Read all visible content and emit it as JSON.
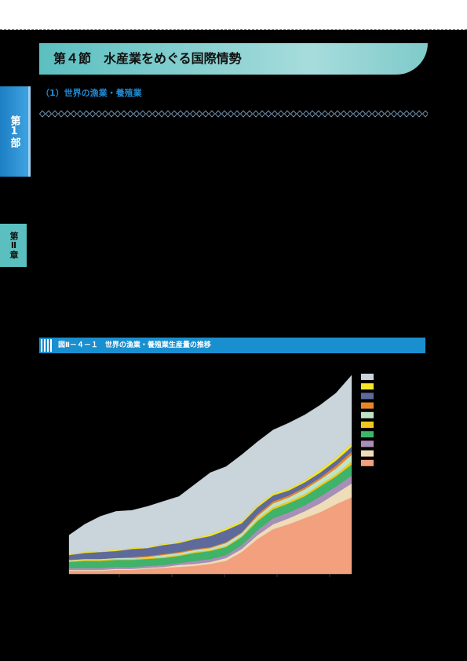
{
  "header": {
    "title": "第４節　水産業をめぐる国際情勢"
  },
  "section": {
    "heading": "（1）世界の漁業・養殖業"
  },
  "tabs": {
    "part": "第1部",
    "chapter": "第Ⅱ章"
  },
  "figure": {
    "title": "図Ⅱ－４－１　世界の漁業・養殖業生産量の推移"
  },
  "chart_data": {
    "type": "stacked-area",
    "categories": [
      null,
      null,
      null,
      null,
      null,
      null,
      null,
      null,
      null,
      null,
      null,
      null,
      null,
      null,
      null,
      null,
      null,
      null,
      null
    ],
    "ylim": [
      0,
      200
    ],
    "series": [
      {
        "color": "#f2a07e",
        "values": [
          3,
          3,
          3,
          4,
          4,
          5,
          6,
          7,
          8,
          10,
          13,
          22,
          35,
          45,
          50,
          56,
          62,
          70,
          77
        ]
      },
      {
        "color": "#efdcb8",
        "values": [
          1,
          1,
          1,
          1,
          1,
          1,
          1,
          2,
          2,
          2,
          3,
          3,
          4,
          5,
          6,
          7,
          9,
          11,
          14
        ]
      },
      {
        "color": "#a690b8",
        "values": [
          2,
          2,
          2,
          2,
          2,
          2,
          2,
          2,
          3,
          3,
          3,
          4,
          5,
          6,
          6,
          6,
          7,
          7,
          8
        ]
      },
      {
        "color": "#3fb36a",
        "values": [
          6,
          7,
          7,
          7,
          7,
          7,
          7,
          7,
          8,
          8,
          8,
          8,
          9,
          9,
          9,
          9,
          10,
          10,
          11
        ]
      },
      {
        "color": "#f2c81a",
        "values": [
          1,
          1,
          1,
          1,
          1,
          1,
          1,
          1,
          1,
          1,
          1,
          1,
          2,
          2,
          2,
          2,
          2,
          2,
          3
        ]
      },
      {
        "color": "#bfe3c6",
        "values": [
          1,
          1,
          1,
          1,
          1,
          1,
          2,
          2,
          2,
          2,
          3,
          3,
          3,
          4,
          4,
          5,
          5,
          6,
          7
        ]
      },
      {
        "color": "#e8852a",
        "values": [
          0,
          0,
          0,
          0,
          1,
          1,
          1,
          1,
          1,
          1,
          1,
          1,
          2,
          2,
          2,
          2,
          2,
          3,
          3
        ]
      },
      {
        "color": "#5e6a9c",
        "values": [
          5,
          6,
          7,
          7,
          8,
          8,
          9,
          9,
          10,
          11,
          12,
          9,
          7,
          6,
          5,
          5,
          5,
          5,
          5
        ]
      },
      {
        "color": "#f5e626",
        "values": [
          1,
          1,
          1,
          1,
          1,
          1,
          1,
          1,
          1,
          2,
          2,
          2,
          2,
          2,
          2,
          2,
          3,
          3,
          3
        ]
      },
      {
        "color": "#c9d4db",
        "values": [
          19,
          28,
          35,
          39,
          38,
          41,
          43,
          46,
          54,
          62,
          62,
          67,
          64,
          64,
          66,
          66,
          65,
          65,
          69
        ]
      }
    ]
  }
}
